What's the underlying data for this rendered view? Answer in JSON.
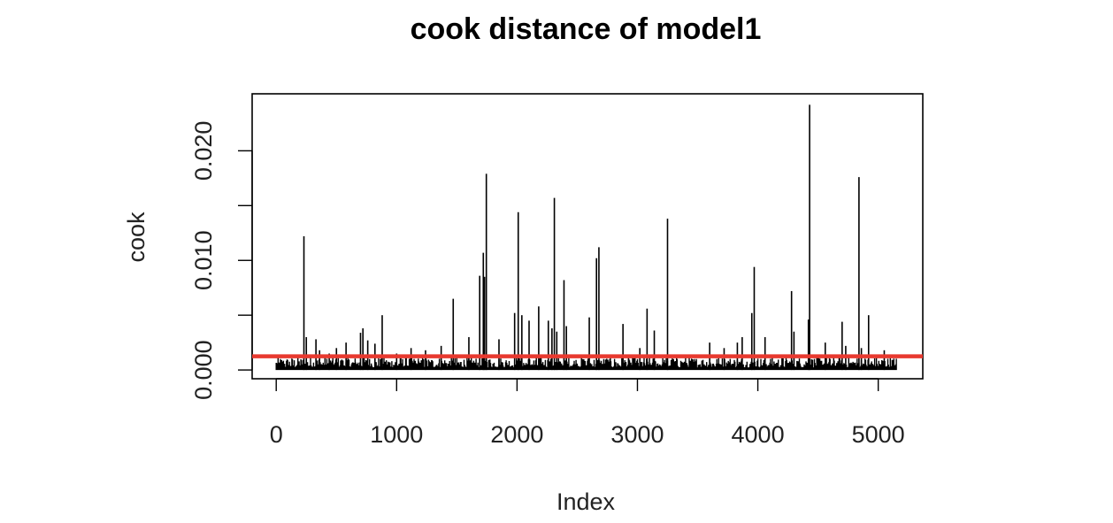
{
  "chart_data": {
    "type": "bar",
    "style": "histogram-spikes",
    "title": "cook distance of model1",
    "xlabel": "Index",
    "ylabel": "cook",
    "xlim": [
      -200,
      5370
    ],
    "ylim": [
      -0.0008,
      0.0252
    ],
    "x_ticks": [
      0,
      1000,
      2000,
      3000,
      4000,
      5000
    ],
    "x_tick_labels": [
      "0",
      "1000",
      "2000",
      "3000",
      "4000",
      "5000"
    ],
    "y_ticks": [
      0,
      0.005,
      0.01,
      0.015,
      0.02
    ],
    "y_tick_labels": [
      "0.000",
      "",
      "0.010",
      "",
      "0.020"
    ],
    "n_points": 5150,
    "baseline_level": 0.0006,
    "spikes": [
      {
        "x": 230,
        "y": 0.0122
      },
      {
        "x": 250,
        "y": 0.003
      },
      {
        "x": 330,
        "y": 0.0028
      },
      {
        "x": 360,
        "y": 0.0018
      },
      {
        "x": 440,
        "y": 0.0015
      },
      {
        "x": 500,
        "y": 0.002
      },
      {
        "x": 580,
        "y": 0.0025
      },
      {
        "x": 700,
        "y": 0.0034
      },
      {
        "x": 720,
        "y": 0.0038
      },
      {
        "x": 760,
        "y": 0.0027
      },
      {
        "x": 820,
        "y": 0.0024
      },
      {
        "x": 880,
        "y": 0.005
      },
      {
        "x": 1000,
        "y": 0.0015
      },
      {
        "x": 1120,
        "y": 0.002
      },
      {
        "x": 1240,
        "y": 0.0018
      },
      {
        "x": 1370,
        "y": 0.0022
      },
      {
        "x": 1470,
        "y": 0.0065
      },
      {
        "x": 1600,
        "y": 0.003
      },
      {
        "x": 1690,
        "y": 0.0086
      },
      {
        "x": 1720,
        "y": 0.0107
      },
      {
        "x": 1730,
        "y": 0.0085
      },
      {
        "x": 1745,
        "y": 0.0179
      },
      {
        "x": 1850,
        "y": 0.0028
      },
      {
        "x": 1980,
        "y": 0.0052
      },
      {
        "x": 2010,
        "y": 0.0144
      },
      {
        "x": 2040,
        "y": 0.005
      },
      {
        "x": 2100,
        "y": 0.0045
      },
      {
        "x": 2180,
        "y": 0.0058
      },
      {
        "x": 2260,
        "y": 0.0045
      },
      {
        "x": 2290,
        "y": 0.0038
      },
      {
        "x": 2310,
        "y": 0.0157
      },
      {
        "x": 2330,
        "y": 0.0035
      },
      {
        "x": 2390,
        "y": 0.0082
      },
      {
        "x": 2410,
        "y": 0.004
      },
      {
        "x": 2600,
        "y": 0.0048
      },
      {
        "x": 2660,
        "y": 0.0102
      },
      {
        "x": 2680,
        "y": 0.0112
      },
      {
        "x": 2880,
        "y": 0.0042
      },
      {
        "x": 3020,
        "y": 0.002
      },
      {
        "x": 3080,
        "y": 0.0056
      },
      {
        "x": 3140,
        "y": 0.0036
      },
      {
        "x": 3250,
        "y": 0.0138
      },
      {
        "x": 3600,
        "y": 0.0025
      },
      {
        "x": 3720,
        "y": 0.002
      },
      {
        "x": 3830,
        "y": 0.0025
      },
      {
        "x": 3870,
        "y": 0.003
      },
      {
        "x": 3950,
        "y": 0.0052
      },
      {
        "x": 3970,
        "y": 0.0094
      },
      {
        "x": 4060,
        "y": 0.003
      },
      {
        "x": 4280,
        "y": 0.0072
      },
      {
        "x": 4300,
        "y": 0.0035
      },
      {
        "x": 4420,
        "y": 0.0046
      },
      {
        "x": 4430,
        "y": 0.0242
      },
      {
        "x": 4560,
        "y": 0.0025
      },
      {
        "x": 4700,
        "y": 0.0044
      },
      {
        "x": 4730,
        "y": 0.0022
      },
      {
        "x": 4840,
        "y": 0.0176
      },
      {
        "x": 4860,
        "y": 0.002
      },
      {
        "x": 4920,
        "y": 0.005
      },
      {
        "x": 5050,
        "y": 0.0018
      }
    ],
    "reference_line": {
      "y": 0.00125,
      "color": "#e8392f"
    },
    "grid": false,
    "colors": {
      "bars": "#000000",
      "axes": "#000000",
      "text": "#222222"
    }
  }
}
